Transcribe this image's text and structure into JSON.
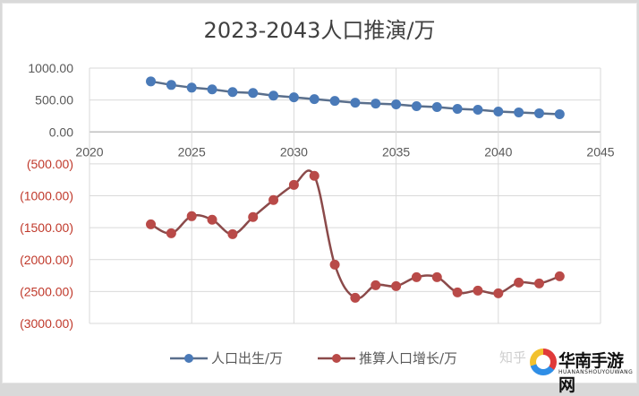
{
  "chart_data": {
    "type": "line",
    "title": "2023-2043人口推演/万",
    "xlabel": "",
    "ylabel": "",
    "x": [
      2023,
      2024,
      2025,
      2026,
      2027,
      2028,
      2029,
      2030,
      2031,
      2032,
      2033,
      2034,
      2035,
      2036,
      2037,
      2038,
      2039,
      2040,
      2041,
      2042,
      2043
    ],
    "series": [
      {
        "name": "人口出生/万",
        "color": "#4a7ab8",
        "smooth": false,
        "values": [
          792,
          736,
          694,
          667,
          625,
          611,
          569,
          542,
          514,
          486,
          458,
          444,
          431,
          403,
          389,
          361,
          347,
          319,
          306,
          292,
          278
        ]
      },
      {
        "name": "推算人口增长/万",
        "color": "#b94a48",
        "smooth": true,
        "values": [
          -1447,
          -1587,
          -1320,
          -1376,
          -1601,
          -1334,
          -1067,
          -829,
          -688,
          -2079,
          -2598,
          -2402,
          -2416,
          -2275,
          -2275,
          -2514,
          -2486,
          -2528,
          -2360,
          -2374,
          -2261
        ]
      }
    ],
    "xlim": [
      2020,
      2045
    ],
    "ylim": [
      -3000,
      1000
    ],
    "x_ticks": [
      "2020",
      "2025",
      "2030",
      "2035",
      "2040",
      "2045"
    ],
    "y_ticks": [
      "1000.00",
      "500.00",
      "0.00",
      "(500.00)",
      "(1000.00)",
      "(1500.00)",
      "(2000.00)",
      "(2500.00)",
      "(3000.00)"
    ],
    "y_tick_values": [
      1000,
      500,
      0,
      -500,
      -1000,
      -1500,
      -2000,
      -2500,
      -3000
    ],
    "grid": true,
    "legend_position": "bottom",
    "negative_tick_color": "#c0392b",
    "positive_tick_color": "#595959"
  },
  "watermark": {
    "zhihu_text": "知乎 @",
    "brand_cn": "华南手游网",
    "brand_en": "HUANANSHOUYOUWANG"
  }
}
